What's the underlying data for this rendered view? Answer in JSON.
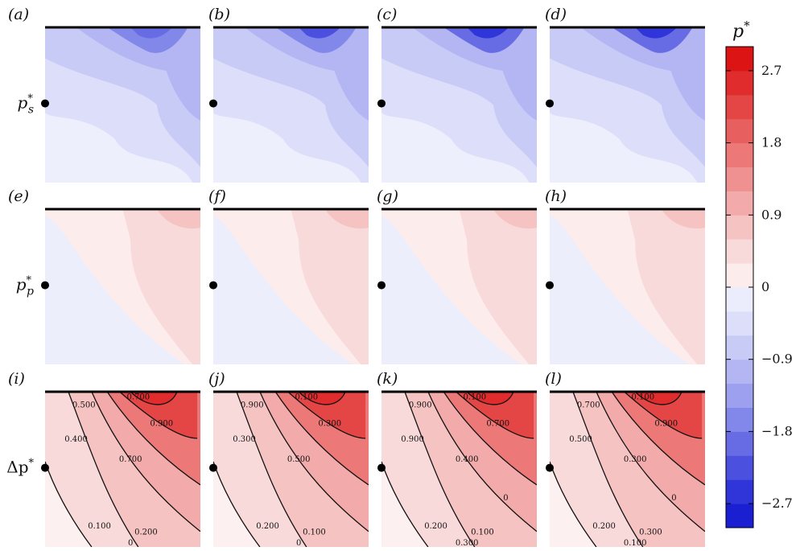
{
  "chart_data": {
    "type": "heatmap",
    "panels": [
      {
        "label": "(a)",
        "row": "s",
        "intensity": 0.55
      },
      {
        "label": "(b)",
        "row": "s",
        "intensity": 0.75
      },
      {
        "label": "(c)",
        "row": "s",
        "intensity": 0.9
      },
      {
        "label": "(d)",
        "row": "s",
        "intensity": 1.0
      },
      {
        "label": "(e)",
        "row": "p",
        "intensity": 1.0
      },
      {
        "label": "(f)",
        "row": "p",
        "intensity": 1.0
      },
      {
        "label": "(g)",
        "row": "p",
        "intensity": 1.0
      },
      {
        "label": "(h)",
        "row": "p",
        "intensity": 1.0
      },
      {
        "label": "(i)",
        "row": "d",
        "intensity": 0.9
      },
      {
        "label": "(j)",
        "row": "d",
        "intensity": 0.95
      },
      {
        "label": "(k)",
        "row": "d",
        "intensity": 1.0
      },
      {
        "label": "(l)",
        "row": "d",
        "intensity": 1.0
      }
    ],
    "row_labels": {
      "s": {
        "main": "p",
        "sup": "*",
        "sub": "s"
      },
      "p": {
        "main": "p",
        "sup": "*",
        "sub": "p"
      },
      "d": {
        "main": "Δp",
        "sup": "*",
        "sub": ""
      }
    },
    "colorbar": {
      "title": "p",
      "title_sup": "*",
      "range": [
        -3.0,
        3.0
      ],
      "levels": 20,
      "ticks": [
        {
          "value": 2.7,
          "label": "2.7"
        },
        {
          "value": 1.8,
          "label": "1.8"
        },
        {
          "value": 0.9,
          "label": "0.9"
        },
        {
          "value": 0,
          "label": "0"
        },
        {
          "value": -0.9,
          "label": "−0.9"
        },
        {
          "value": -1.8,
          "label": "−1.8"
        },
        {
          "value": -2.7,
          "label": "−2.7"
        }
      ]
    },
    "contour_labels": {
      "(i)": [
        "0.700",
        "0.900",
        "0.500",
        "0.400",
        "0.700",
        "0.100",
        "0.200",
        "0"
      ],
      "(j)": [
        "0.100",
        "0.300",
        "0.900",
        "0.300",
        "0.500",
        "0.200",
        "0.100",
        "0"
      ],
      "(k)": [
        "0.100",
        "0.700",
        "0.900",
        "0.900",
        "0.400",
        "0.200",
        "0.100",
        "0.300",
        "0"
      ],
      "(l)": [
        "0.100",
        "0.900",
        "0.700",
        "0.500",
        "0.300",
        "0.200",
        "0.300",
        "0.100",
        "0"
      ]
    }
  }
}
